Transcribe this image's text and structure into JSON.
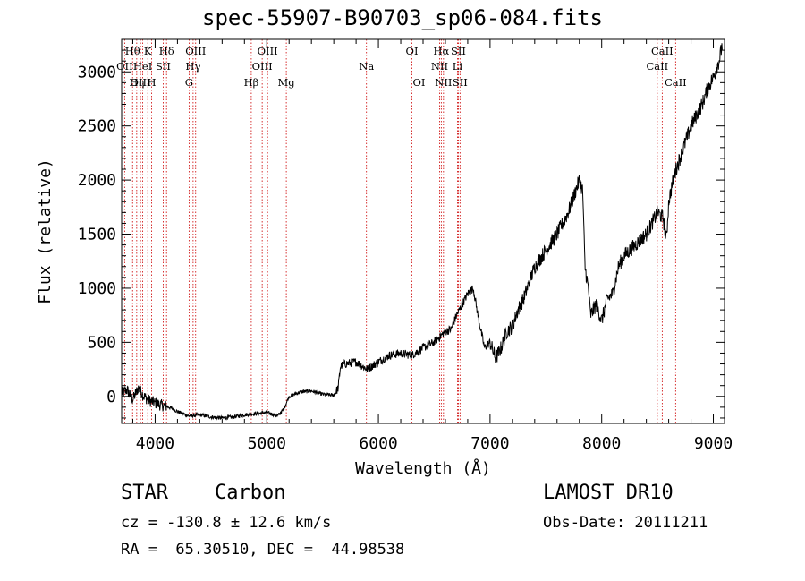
{
  "title": "spec-55907-B90703_sp06-084.fits",
  "footer": {
    "class": "STAR",
    "subclass": "Carbon",
    "survey": "LAMOST DR10",
    "cz": "cz = -130.8 ± 12.6 km/s",
    "obs_date": "Obs-Date: 20111211",
    "coords": "RA =  65.30510, DEC =  44.98538"
  },
  "chart_data": {
    "type": "line",
    "xlabel": "Wavelength (Å)",
    "ylabel": "Flux (relative)",
    "xlim": [
      3700,
      9100
    ],
    "ylim": [
      -250,
      3300
    ],
    "xticks": [
      4000,
      5000,
      6000,
      7000,
      8000,
      9000
    ],
    "yticks": [
      0,
      500,
      1000,
      1500,
      2000,
      2500,
      3000
    ],
    "line_color": "#000000",
    "marker_color": "#cc0000",
    "spectral_lines": [
      {
        "label": "Hθ",
        "wavelength": 3798,
        "row": 0
      },
      {
        "label": "OII",
        "wavelength": 3727,
        "row": 1
      },
      {
        "label": "OIII",
        "wavelength": 3869,
        "row": 2
      },
      {
        "label": "K",
        "wavelength": 3934,
        "row": 0
      },
      {
        "label": "HeI",
        "wavelength": 3889,
        "row": 1
      },
      {
        "label": "Hη",
        "wavelength": 3835,
        "row": 2
      },
      {
        "label": "H",
        "wavelength": 3969,
        "row": 2
      },
      {
        "label": "SII",
        "wavelength": 4072,
        "row": 1
      },
      {
        "label": "Hδ",
        "wavelength": 4102,
        "row": 0
      },
      {
        "label": "OIII",
        "wavelength": 4363,
        "row": 0
      },
      {
        "label": "Hγ",
        "wavelength": 4340,
        "row": 1
      },
      {
        "label": "G",
        "wavelength": 4304,
        "row": 2
      },
      {
        "label": "Hβ",
        "wavelength": 4861,
        "row": 2
      },
      {
        "label": "OIII",
        "wavelength": 5007,
        "row": 0
      },
      {
        "label": "OIII",
        "wavelength": 4959,
        "row": 1
      },
      {
        "label": "Mg",
        "wavelength": 5175,
        "row": 2
      },
      {
        "label": "Na",
        "wavelength": 5893,
        "row": 1
      },
      {
        "label": "OI",
        "wavelength": 6300,
        "row": 0
      },
      {
        "label": "OI",
        "wavelength": 6364,
        "row": 2
      },
      {
        "label": "Hα",
        "wavelength": 6563,
        "row": 0
      },
      {
        "label": "NII",
        "wavelength": 6548,
        "row": 1
      },
      {
        "label": "NII",
        "wavelength": 6583,
        "row": 2
      },
      {
        "label": "SII",
        "wavelength": 6716,
        "row": 0
      },
      {
        "label": "Li",
        "wavelength": 6708,
        "row": 1
      },
      {
        "label": "SII",
        "wavelength": 6731,
        "row": 2
      },
      {
        "label": "CaII",
        "wavelength": 8542,
        "row": 0
      },
      {
        "label": "CaII",
        "wavelength": 8498,
        "row": 1
      },
      {
        "label": "CaII",
        "wavelength": 8662,
        "row": 2
      }
    ],
    "spectrum": {
      "x": [
        3700,
        3750,
        3800,
        3850,
        3900,
        3950,
        4000,
        4050,
        4100,
        4150,
        4200,
        4300,
        4400,
        4500,
        4600,
        4700,
        4800,
        4900,
        5000,
        5100,
        5150,
        5200,
        5300,
        5400,
        5500,
        5600,
        5640,
        5660,
        5700,
        5800,
        5900,
        6000,
        6100,
        6200,
        6300,
        6400,
        6500,
        6550,
        6600,
        6650,
        6700,
        6750,
        6800,
        6850,
        6900,
        6950,
        7000,
        7050,
        7100,
        7150,
        7200,
        7250,
        7300,
        7400,
        7500,
        7600,
        7700,
        7750,
        7800,
        7830,
        7850,
        7880,
        7900,
        7950,
        8000,
        8050,
        8100,
        8150,
        8200,
        8300,
        8400,
        8450,
        8500,
        8550,
        8580,
        8600,
        8650,
        8700,
        8750,
        8800,
        8850,
        8900,
        8950,
        9000,
        9050,
        9080
      ],
      "y": [
        30,
        60,
        -30,
        80,
        0,
        -40,
        -60,
        -80,
        -90,
        -110,
        -140,
        -180,
        -170,
        -190,
        -200,
        -190,
        -170,
        -160,
        -150,
        -180,
        -120,
        0,
        40,
        50,
        20,
        10,
        80,
        280,
        300,
        320,
        250,
        320,
        380,
        400,
        380,
        450,
        500,
        550,
        600,
        620,
        750,
        850,
        950,
        1000,
        700,
        450,
        500,
        350,
        450,
        600,
        650,
        800,
        900,
        1200,
        1350,
        1500,
        1700,
        1850,
        2000,
        1900,
        1200,
        1000,
        750,
        850,
        700,
        900,
        950,
        1200,
        1300,
        1400,
        1500,
        1600,
        1700,
        1650,
        1450,
        1800,
        2050,
        2200,
        2350,
        2500,
        2600,
        2700,
        2850,
        2950,
        3100,
        3250
      ]
    }
  }
}
